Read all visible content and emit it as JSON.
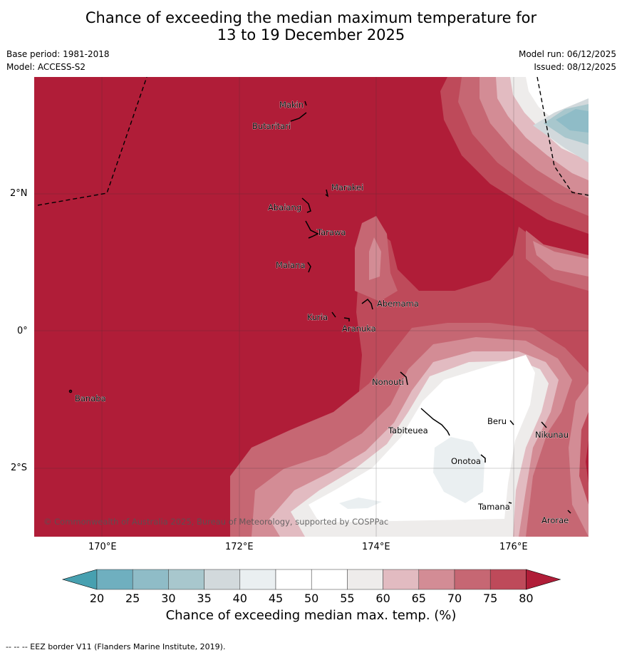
{
  "title": {
    "line1": "Chance of exceeding the median maximum temperature for",
    "line2": "13 to 19 December 2025"
  },
  "meta": {
    "base_period": "Base period: 1981-2018",
    "model": "Model: ACCESS-S2",
    "model_run": "Model run: 06/12/2025",
    "issued": "Issued: 08/12/2025"
  },
  "map": {
    "lat_labels": [
      "2°N",
      "0°",
      "2°S"
    ],
    "lon_labels": [
      "170°E",
      "172°E",
      "174°E",
      "176°E"
    ],
    "places": [
      "Makin",
      "Butaritari",
      "Marakei",
      "Abaiang",
      "Tarawa",
      "Maiana",
      "Abemama",
      "Kuria",
      "Aranuka",
      "Nonouti",
      "Banaba",
      "Beru",
      "Nikunau",
      "Tabiteuea",
      "Onotoa",
      "Tamana",
      "Arorae"
    ],
    "copyright": "© Commonwealth of Australia 2025, Bureau of Meteorology, supported by COSPPac",
    "dominant_category": "75-80%+"
  },
  "colorbar": {
    "ticks": [
      "20",
      "25",
      "30",
      "35",
      "40",
      "45",
      "50",
      "55",
      "60",
      "65",
      "70",
      "75",
      "80"
    ],
    "colors": [
      "#47a0b0",
      "#6fafbf",
      "#8fbcc7",
      "#a8c7cd",
      "#d2d9dc",
      "#eaeff1",
      "#ffffff",
      "#ffffff",
      "#eeeceb",
      "#e2bbc1",
      "#d38c95",
      "#c66773",
      "#be4a5a",
      "#b01d38"
    ],
    "label": "Chance of exceeding median max. temp. (%)"
  },
  "footer": "--  --  -- EEZ border V11 (Flanders Marine Institute, 2019)."
}
